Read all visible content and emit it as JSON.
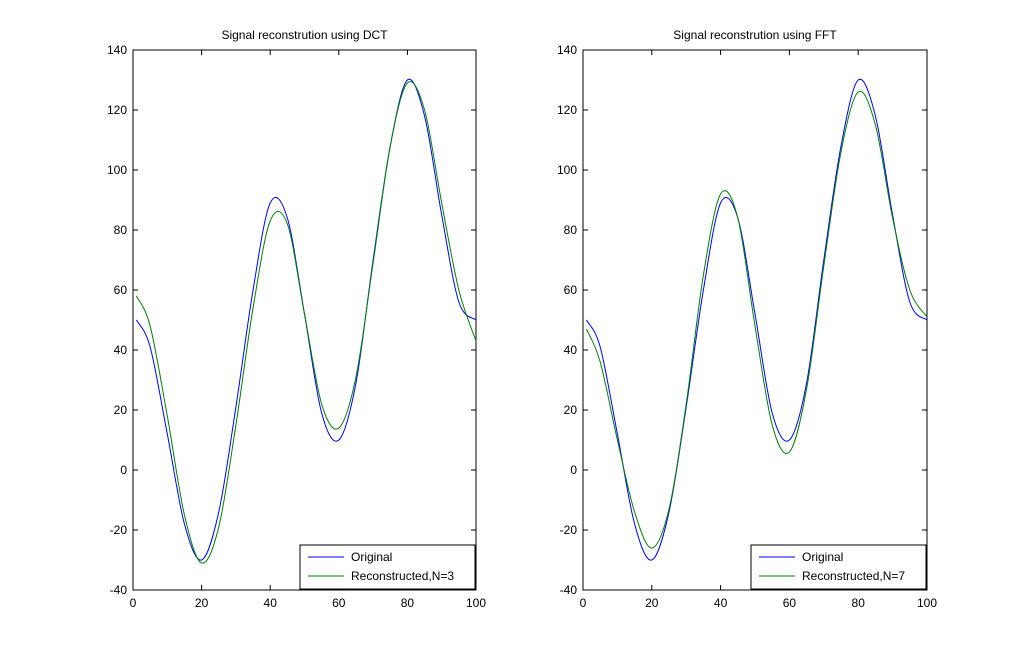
{
  "chart_data": [
    {
      "type": "line",
      "title": "Signal reconstrution using DCT",
      "xlabel": "",
      "ylabel": "",
      "xlim": [
        0,
        100
      ],
      "ylim": [
        -40,
        140
      ],
      "xticks": [
        "0",
        "20",
        "40",
        "60",
        "80",
        "100"
      ],
      "yticks": [
        "-40",
        "-20",
        "0",
        "20",
        "40",
        "60",
        "80",
        "100",
        "120",
        "140"
      ],
      "legend_position": "bottom-right",
      "x": [
        1,
        5,
        10,
        15,
        20,
        25,
        30,
        35,
        40,
        45,
        50,
        55,
        60,
        65,
        70,
        75,
        80,
        85,
        90,
        95,
        100
      ],
      "series": [
        {
          "name": "Original",
          "color": "#0000ff",
          "values": [
            50,
            41,
            12,
            -18,
            -30,
            -14,
            21,
            60,
            89,
            84,
            52,
            19,
            10,
            29,
            70,
            108,
            130,
            118,
            85,
            56,
            50
          ]
        },
        {
          "name": "Reconstructed,N=3",
          "color": "#008000",
          "values": [
            58,
            48,
            18,
            -15,
            -31,
            -19,
            15,
            54,
            83,
            82,
            52,
            22,
            14,
            31,
            69,
            108,
            129,
            120,
            89,
            60,
            43
          ]
        }
      ]
    },
    {
      "type": "line",
      "title": "Signal reconstrution using FFT",
      "xlabel": "",
      "ylabel": "",
      "xlim": [
        0,
        100
      ],
      "ylim": [
        -40,
        140
      ],
      "xticks": [
        "0",
        "20",
        "40",
        "60",
        "80",
        "100"
      ],
      "yticks": [
        "-40",
        "-20",
        "0",
        "20",
        "40",
        "60",
        "80",
        "100",
        "120",
        "140"
      ],
      "legend_position": "bottom-right",
      "x": [
        1,
        5,
        10,
        15,
        20,
        25,
        30,
        35,
        40,
        45,
        50,
        55,
        60,
        65,
        70,
        75,
        80,
        85,
        90,
        95,
        100
      ],
      "series": [
        {
          "name": "Original",
          "color": "#0000ff",
          "values": [
            50,
            41,
            12,
            -18,
            -30,
            -14,
            21,
            60,
            89,
            84,
            52,
            19,
            10,
            29,
            70,
            108,
            130,
            118,
            85,
            56,
            50
          ]
        },
        {
          "name": "Reconstructed,N=7",
          "color": "#008000",
          "values": [
            47,
            36,
            10,
            -14,
            -26,
            -13,
            22,
            65,
            92,
            84,
            48,
            15,
            6,
            27,
            68,
            106,
            126,
            115,
            84,
            60,
            51
          ]
        }
      ]
    }
  ]
}
